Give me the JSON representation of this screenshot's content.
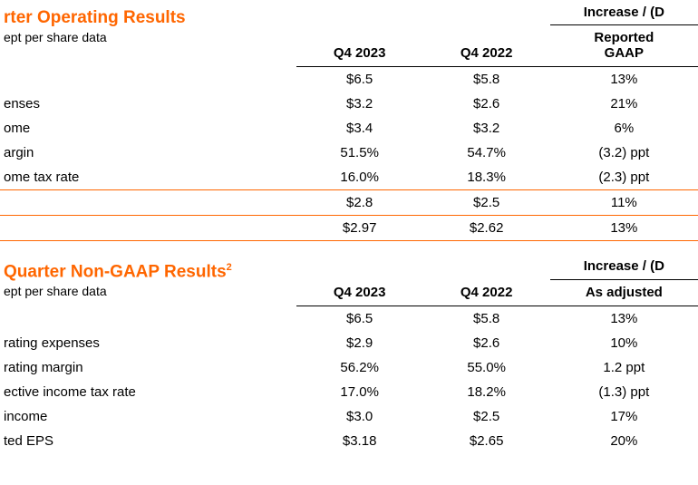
{
  "colors": {
    "accent": "#ff6600",
    "text": "#000000",
    "bg": "#ffffff"
  },
  "table1": {
    "title": "rter Operating Results",
    "subtitle": "ept per share data",
    "inc_header_top": "Increase / (D",
    "col_q1": "Q4 2023",
    "col_q2": "Q4 2022",
    "col_inc": "Reported\nGAAP",
    "rows": [
      {
        "label": "",
        "q1": "$6.5",
        "q2": "$5.8",
        "inc": "13%"
      },
      {
        "label": "enses",
        "q1": "$3.2",
        "q2": "$2.6",
        "inc": "21%"
      },
      {
        "label": "ome",
        "q1": "$3.4",
        "q2": "$3.2",
        "inc": "6%"
      },
      {
        "label": "argin",
        "q1": "51.5%",
        "q2": "54.7%",
        "inc": "(3.2) ppt"
      },
      {
        "label": "ome tax rate",
        "q1": "16.0%",
        "q2": "18.3%",
        "inc": "(2.3) ppt"
      },
      {
        "label": "",
        "q1": "$2.8",
        "q2": "$2.5",
        "inc": "11%"
      },
      {
        "label": "",
        "q1": "$2.97",
        "q2": "$2.62",
        "inc": "13%"
      }
    ]
  },
  "table2": {
    "title": "Quarter Non-GAAP Results",
    "title_sup": "2",
    "subtitle": "ept per share data",
    "inc_header_top": "Increase / (D",
    "col_q1": "Q4 2023",
    "col_q2": "Q4 2022",
    "col_inc": "As adjusted",
    "rows": [
      {
        "label": "",
        "q1": "$6.5",
        "q2": "$5.8",
        "inc": "13%"
      },
      {
        "label": "rating expenses",
        "q1": "$2.9",
        "q2": "$2.6",
        "inc": "10%"
      },
      {
        "label": "rating margin",
        "q1": "56.2%",
        "q2": "55.0%",
        "inc": "1.2 ppt"
      },
      {
        "label": "ective income tax rate",
        "q1": "17.0%",
        "q2": "18.2%",
        "inc": "(1.3) ppt"
      },
      {
        "label": " income",
        "q1": "$3.0",
        "q2": "$2.5",
        "inc": "17%"
      },
      {
        "label": "ted EPS",
        "q1": "$3.18",
        "q2": "$2.65",
        "inc": "20%"
      }
    ]
  }
}
